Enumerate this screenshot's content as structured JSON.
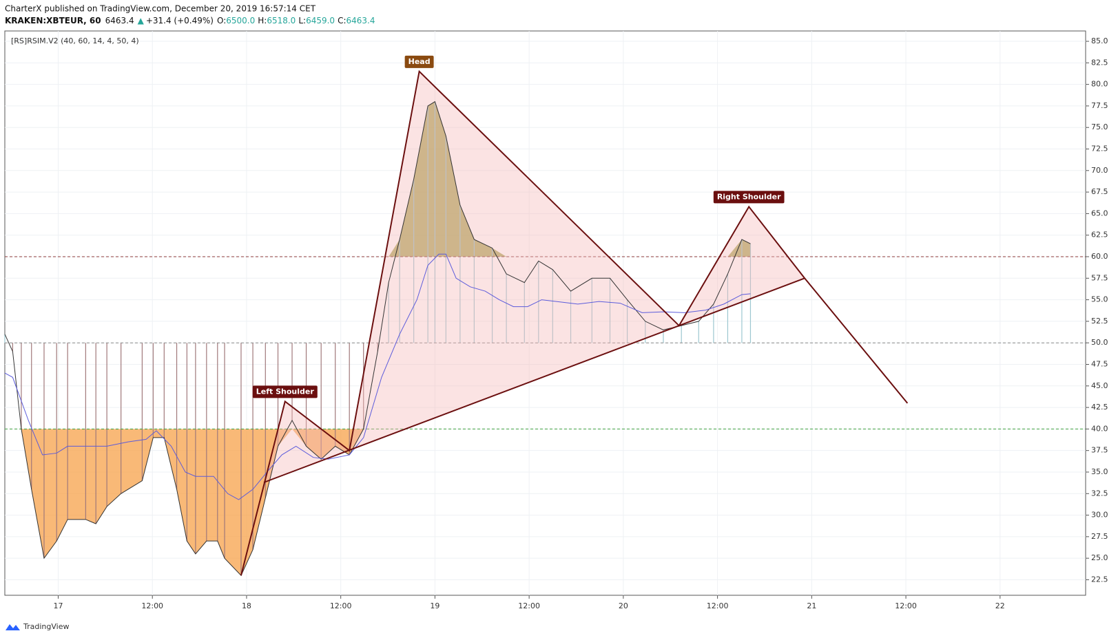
{
  "header": {
    "publisher": "CharterX published on TradingView.com, December 20, 2019 16:57:14 CET",
    "symbol": "KRAKEN:XBTEUR, 60",
    "price": "6463.4",
    "change_arrow": "▲",
    "change": "+31.4 (+0.49%)",
    "o_label": "O:",
    "o": "6500.0",
    "h_label": "H:",
    "h": "6518.0",
    "l_label": "L:",
    "l": "6459.0",
    "c_label": "C:",
    "c": "6463.4"
  },
  "footer": {
    "brand": "TradingView"
  },
  "chart_data": {
    "type": "line",
    "title": "[RS]RSIM.V2 (40, 60, 14, 4, 50, 4)",
    "xlim": [
      -6.8,
      130.9
    ],
    "ylim": [
      20.7,
      86.2
    ],
    "grid": true,
    "xticks": [
      {
        "value": 0,
        "label": "17"
      },
      {
        "value": 12,
        "label": "12:00"
      },
      {
        "value": 24,
        "label": "18"
      },
      {
        "value": 36,
        "label": "12:00"
      },
      {
        "value": 48,
        "label": "19"
      },
      {
        "value": 60,
        "label": "12:00"
      },
      {
        "value": 72,
        "label": "20"
      },
      {
        "value": 84,
        "label": "12:00"
      },
      {
        "value": 96,
        "label": "21"
      },
      {
        "value": 108,
        "label": "12:00"
      },
      {
        "value": 120,
        "label": "22"
      }
    ],
    "yticks": [
      {
        "value": 22.5,
        "label": "22.5"
      },
      {
        "value": 25,
        "label": "25.0"
      },
      {
        "value": 27.5,
        "label": "27.5"
      },
      {
        "value": 30,
        "label": "30.0"
      },
      {
        "value": 32.5,
        "label": "32.5"
      },
      {
        "value": 35,
        "label": "35.0"
      },
      {
        "value": 37.5,
        "label": "37.5"
      },
      {
        "value": 40,
        "label": "40.0"
      },
      {
        "value": 42.5,
        "label": "42.5"
      },
      {
        "value": 45,
        "label": "45.0"
      },
      {
        "value": 47.5,
        "label": "47.5"
      },
      {
        "value": 50,
        "label": "50.0"
      },
      {
        "value": 52.5,
        "label": "52.5"
      },
      {
        "value": 55,
        "label": "55.0"
      },
      {
        "value": 57.5,
        "label": "57.5"
      },
      {
        "value": 60,
        "label": "60.0"
      },
      {
        "value": 62.5,
        "label": "62.5"
      },
      {
        "value": 65,
        "label": "65.0"
      },
      {
        "value": 67.5,
        "label": "67.5"
      },
      {
        "value": 70,
        "label": "70.0"
      },
      {
        "value": 72.5,
        "label": "72.5"
      },
      {
        "value": 75,
        "label": "75.0"
      },
      {
        "value": 77.5,
        "label": "77.5"
      },
      {
        "value": 80,
        "label": "80.0"
      },
      {
        "value": 82.5,
        "label": "82.5"
      },
      {
        "value": 85,
        "label": "85.0"
      }
    ],
    "levels": [
      {
        "value": 60,
        "color": "#8b3a3a"
      },
      {
        "value": 50,
        "color": "#888888"
      },
      {
        "value": 40,
        "color": "#3fa13f"
      }
    ],
    "series": [
      {
        "color": "#333333",
        "x": [
          -6.8,
          -5.8,
          -4.7,
          -3.4,
          -1.8,
          -0.2,
          1.2,
          3.5,
          4.8,
          6.2,
          8,
          10.7,
          12.1,
          13.5,
          15.1,
          16.4,
          17.5,
          18.9,
          20.3,
          21.2,
          23.3,
          24.8,
          26.4,
          28,
          29.8,
          31.6,
          33.5,
          35.3,
          37.1,
          38.9,
          40.7,
          42.1,
          43.5,
          45.3,
          47.1,
          48,
          49.4,
          51.2,
          53,
          55.3,
          57.1,
          59.4,
          61.2,
          63,
          65.3,
          68,
          70.3,
          72.5,
          74.8,
          77.1,
          79.4,
          81.6,
          83.5,
          85.3,
          87.1,
          88.2
        ],
        "values": [
          51,
          49,
          40,
          33,
          25,
          27,
          29.5,
          29.5,
          29,
          31,
          32.5,
          34,
          39,
          39,
          33,
          27,
          25.5,
          27,
          27,
          25,
          23,
          26,
          32,
          38,
          41,
          38,
          36.5,
          38,
          37,
          40,
          49,
          57,
          62,
          69,
          77.5,
          78,
          74,
          66,
          62,
          61,
          58,
          57,
          59.5,
          58.5,
          56,
          57.5,
          57.5,
          55,
          52.5,
          51.5,
          52,
          52.5,
          54.5,
          58,
          62,
          61.5
        ]
      },
      {
        "color": "#5b5bdb",
        "x": [
          -6.8,
          -5.8,
          -3.8,
          -2,
          -0.2,
          1.2,
          3.5,
          6.2,
          8.9,
          11.2,
          12.5,
          14.4,
          16.2,
          17.5,
          19.8,
          21.6,
          23,
          24.8,
          26.6,
          28.5,
          30.3,
          32.5,
          34.4,
          37.1,
          38.9,
          41.2,
          43.5,
          45.7,
          47.1,
          48.5,
          49.4,
          50.7,
          52.5,
          54.4,
          56.2,
          58,
          59.8,
          61.6,
          64.4,
          66.2,
          68.9,
          71.6,
          74.4,
          77.1,
          79.8,
          82.5,
          84.8,
          87.1,
          88.2
        ],
        "values": [
          46.5,
          46,
          41,
          37,
          37.2,
          38,
          38,
          38,
          38.5,
          38.8,
          39.8,
          38,
          35,
          34.5,
          34.5,
          32.5,
          31.8,
          33,
          35,
          37,
          38,
          36.7,
          36.5,
          37,
          39,
          46,
          51,
          55,
          59,
          60.3,
          60.3,
          57.5,
          56.5,
          56,
          55,
          54.2,
          54.2,
          55,
          54.7,
          54.5,
          54.8,
          54.6,
          53.5,
          53.6,
          53.5,
          53.8,
          54.5,
          55.6,
          55.7
        ]
      }
    ],
    "pattern": {
      "color": "#6b0f0f",
      "x": [
        23.3,
        28.9,
        37.1,
        46,
        79.1,
        88,
        95.1,
        108.2
      ],
      "values": [
        23,
        43.2,
        37.5,
        81.5,
        52,
        65.8,
        57.5,
        43
      ],
      "neckline_x": [
        26.2,
        95.1
      ],
      "neckline_values": [
        33.8,
        57.5
      ]
    },
    "annotations": [
      {
        "text": "Left Shoulder",
        "point": 1,
        "color": "#6b0f0f"
      },
      {
        "text": "Head",
        "point": 3,
        "color": "#8a4a10"
      },
      {
        "text": "Right Shoulder",
        "point": 5,
        "color": "#6b0f0f"
      }
    ]
  }
}
